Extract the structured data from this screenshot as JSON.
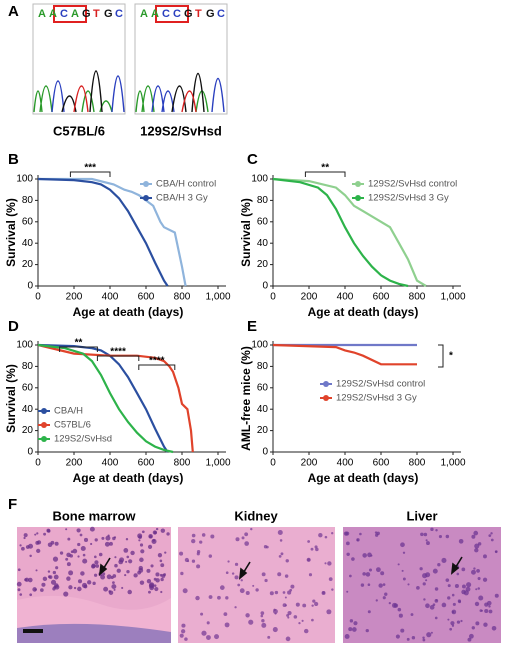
{
  "panel_labels": [
    "A",
    "B",
    "C",
    "D",
    "E",
    "F"
  ],
  "sequencing": [
    {
      "bases": [
        "A",
        "A",
        "C",
        "A",
        "G",
        "T",
        "G",
        "C"
      ],
      "strain": "C57BL/6"
    },
    {
      "bases": [
        "A",
        "A",
        "C",
        "C",
        "G",
        "T",
        "G",
        "C"
      ],
      "strain": "129S2/SvHsd"
    }
  ],
  "histology": [
    "Bone marrow",
    "Kidney",
    "Liver"
  ],
  "chart_data": [
    {
      "type": "line",
      "ylabel": "Survival (%)",
      "xlabel": "Age at death (days)",
      "xlim": [
        0,
        1000
      ],
      "xticks": [
        0,
        200,
        400,
        600,
        800,
        {
          "value": 1000,
          "label": "1,000"
        }
      ],
      "ylim": [
        0,
        100
      ],
      "yticks": [
        0,
        20,
        40,
        60,
        80,
        100
      ],
      "legend": "upper right",
      "annotations": [
        "***"
      ],
      "series": [
        {
          "name": "CBA/H control",
          "color": "#8fb4dc",
          "x": [
            0,
            300,
            420,
            480,
            520,
            560,
            600,
            640,
            680,
            700,
            760,
            800,
            820
          ],
          "values": [
            100,
            100,
            95,
            90,
            88,
            85,
            80,
            75,
            60,
            55,
            50,
            18,
            0
          ]
        },
        {
          "name": "CBA/H 3 Gy",
          "color": "#2b4fa0",
          "x": [
            0,
            200,
            300,
            350,
            400,
            450,
            500,
            550,
            600,
            650,
            700,
            720
          ],
          "values": [
            100,
            99,
            97,
            95,
            90,
            82,
            70,
            55,
            40,
            22,
            5,
            0
          ]
        }
      ]
    },
    {
      "type": "line",
      "ylabel": "Survival (%)",
      "xlabel": "Age at death (days)",
      "xlim": [
        0,
        1000
      ],
      "xticks": [
        0,
        200,
        400,
        600,
        800,
        {
          "value": 1000,
          "label": "1,000"
        }
      ],
      "ylim": [
        0,
        100
      ],
      "yticks": [
        0,
        20,
        40,
        60,
        80,
        100
      ],
      "legend": "upper right",
      "annotations": [
        "**"
      ],
      "series": [
        {
          "name": "129S2/SvHsd control",
          "color": "#8fd08f",
          "x": [
            0,
            200,
            350,
            400,
            450,
            500,
            550,
            600,
            650,
            700,
            750,
            800,
            850
          ],
          "values": [
            100,
            98,
            92,
            85,
            75,
            70,
            65,
            60,
            55,
            40,
            25,
            5,
            0
          ]
        },
        {
          "name": "129S2/SvHsd 3 Gy",
          "color": "#2db34a",
          "x": [
            0,
            150,
            250,
            300,
            350,
            400,
            450,
            500,
            550,
            600,
            650,
            700,
            750
          ],
          "values": [
            100,
            97,
            92,
            85,
            72,
            55,
            40,
            28,
            18,
            10,
            5,
            2,
            0
          ]
        }
      ]
    },
    {
      "type": "line",
      "ylabel": "Survival (%)",
      "xlabel": "Age at death (days)",
      "xlim": [
        0,
        1000
      ],
      "xticks": [
        0,
        200,
        400,
        600,
        800,
        {
          "value": 1000,
          "label": "1,000"
        }
      ],
      "ylim": [
        0,
        100
      ],
      "yticks": [
        0,
        20,
        40,
        60,
        80,
        100
      ],
      "legend": "lower left",
      "annotations": [
        "**",
        "****",
        "****"
      ],
      "series": [
        {
          "name": "CBA/H",
          "color": "#2b4fa0",
          "x": [
            0,
            200,
            300,
            350,
            400,
            450,
            500,
            550,
            600,
            650,
            700,
            720
          ],
          "values": [
            100,
            99,
            97,
            95,
            90,
            82,
            70,
            55,
            40,
            22,
            5,
            0
          ]
        },
        {
          "name": "C57BL/6",
          "color": "#e0432b",
          "x": [
            0,
            200,
            400,
            550,
            650,
            700,
            730,
            750,
            780,
            800,
            830,
            850,
            860
          ],
          "values": [
            100,
            92,
            90,
            90,
            88,
            85,
            80,
            75,
            60,
            45,
            40,
            20,
            0
          ]
        },
        {
          "name": "129S2/SvHsd",
          "color": "#2db34a",
          "x": [
            0,
            150,
            250,
            300,
            350,
            400,
            450,
            500,
            550,
            600,
            650,
            700,
            750
          ],
          "values": [
            100,
            97,
            92,
            85,
            72,
            55,
            40,
            28,
            18,
            10,
            5,
            2,
            0
          ]
        }
      ]
    },
    {
      "type": "line",
      "ylabel": "AML-free mice (%)",
      "xlabel": "Age at death (days)",
      "xlim": [
        0,
        1000
      ],
      "xticks": [
        0,
        200,
        400,
        600,
        800,
        {
          "value": 1000,
          "label": "1,000"
        }
      ],
      "ylim": [
        0,
        100
      ],
      "yticks": [
        0,
        20,
        40,
        60,
        80,
        100
      ],
      "legend": "right",
      "annotations": [
        "*"
      ],
      "series": [
        {
          "name": "129S2/SvHsd control",
          "color": "#6f78c8",
          "x": [
            0,
            800
          ],
          "values": [
            100,
            100
          ]
        },
        {
          "name": "129S2/SvHsd 3 Gy",
          "color": "#e0432b",
          "x": [
            0,
            350,
            400,
            450,
            500,
            600,
            800
          ],
          "values": [
            100,
            98,
            95,
            93,
            90,
            82,
            82
          ]
        }
      ]
    }
  ]
}
